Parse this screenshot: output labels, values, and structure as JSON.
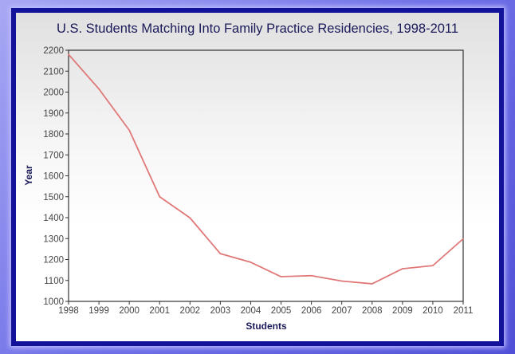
{
  "chart_data": {
    "type": "line",
    "title": "U.S. Students Matching Into Family Practice Residencies, 1998-2011",
    "xlabel": "Students",
    "ylabel": "Year",
    "x": [
      1998,
      1999,
      2000,
      2001,
      2002,
      2003,
      2004,
      2005,
      2006,
      2007,
      2008,
      2009,
      2010,
      2011
    ],
    "series": [
      {
        "name": "Students",
        "values": [
          2180,
          2015,
          1818,
          1500,
          1399,
          1228,
          1187,
          1118,
          1123,
          1097,
          1084,
          1156,
          1171,
          1299
        ]
      }
    ],
    "ylim": [
      1000,
      2200
    ],
    "yticks": [
      1000,
      1100,
      1200,
      1300,
      1400,
      1500,
      1600,
      1700,
      1800,
      1900,
      2000,
      2100,
      2200
    ],
    "grid": false,
    "colors": {
      "line": "#e07878",
      "axis": "#333333",
      "title": "#1a1a5a",
      "label": "#1a1a5a",
      "frame": "#12129a"
    }
  }
}
